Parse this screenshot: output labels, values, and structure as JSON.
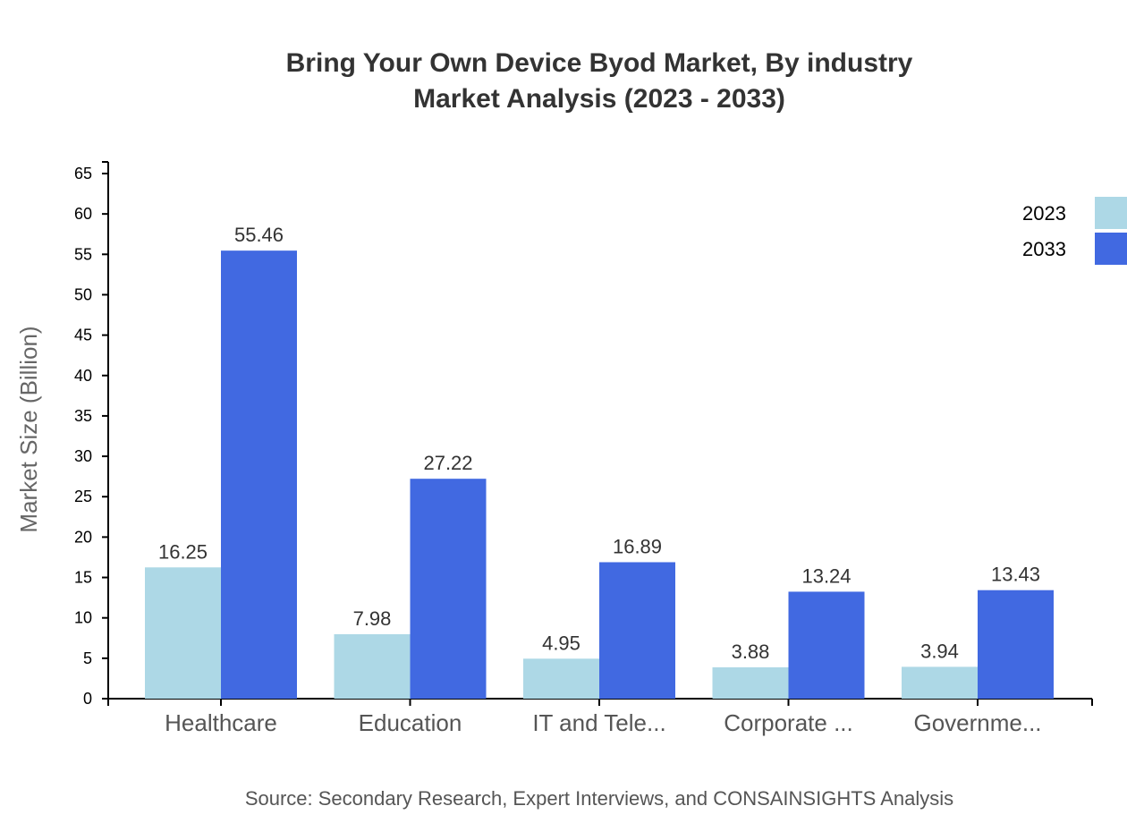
{
  "chart_data": {
    "type": "bar",
    "title": "Bring Your Own Device Byod Market, By industry",
    "subtitle": "Market Analysis (2023 - 2033)",
    "xlabel": "",
    "ylabel": "Market Size (Billion)",
    "ylim": [
      0,
      65
    ],
    "yticks": [
      0,
      5,
      10,
      15,
      20,
      25,
      30,
      35,
      40,
      45,
      50,
      55,
      60,
      65
    ],
    "grid": false,
    "legend_position": "top-right",
    "categories": [
      "Healthcare",
      "Education",
      "IT and Tele...",
      "Corporate ...",
      "Governme..."
    ],
    "series": [
      {
        "name": "2023",
        "color": "#add8e6",
        "values": [
          16.25,
          7.98,
          4.95,
          3.88,
          3.94
        ]
      },
      {
        "name": "2033",
        "color": "#4169e1",
        "values": [
          55.46,
          27.22,
          16.89,
          13.24,
          13.43
        ]
      }
    ],
    "source": "Source: Secondary Research, Expert Interviews, and CONSAINSIGHTS Analysis"
  }
}
